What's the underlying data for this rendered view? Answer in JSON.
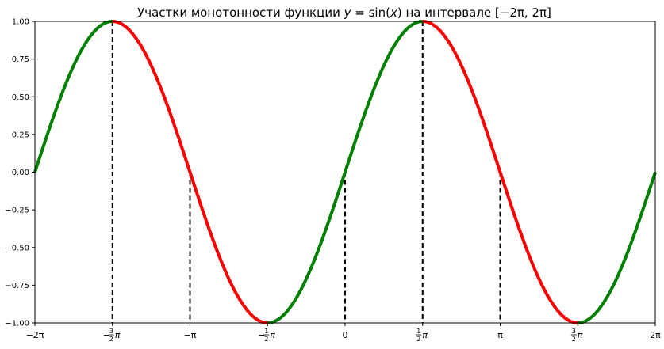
{
  "chart_data": {
    "type": "line",
    "title": {
      "prefix": "Участки монотонности функции ",
      "func_var": "y",
      "func_eq": " = sin(",
      "func_arg": "x",
      "func_close": ")",
      "middle": " на интервале ",
      "interval": "[−2π, 2π]"
    },
    "xlabel": "",
    "ylabel": "",
    "xlim": [
      -6.283185,
      6.283185
    ],
    "ylim": [
      -1.0,
      1.0
    ],
    "grid": false,
    "function": "sin(x)",
    "series": [
      {
        "segment": "increasing",
        "color": "#008000",
        "x": [
          -6.283185,
          -4.712389
        ]
      },
      {
        "segment": "decreasing",
        "color": "#ff0000",
        "x": [
          -4.712389,
          -1.570796
        ]
      },
      {
        "segment": "increasing",
        "color": "#008000",
        "x": [
          -1.570796,
          1.570796
        ]
      },
      {
        "segment": "decreasing",
        "color": "#ff0000",
        "x": [
          1.570796,
          4.712389
        ]
      },
      {
        "segment": "increasing",
        "color": "#008000",
        "x": [
          4.712389,
          6.283185
        ]
      }
    ],
    "vertical_lines": [
      {
        "x": -4.712389,
        "y_to": 1.0
      },
      {
        "x": -3.141593,
        "y_to": 0.0
      },
      {
        "x": -1.570796,
        "y_to": -1.0
      },
      {
        "x": 0.0,
        "y_to": 0.0
      },
      {
        "x": 1.570796,
        "y_to": 1.0
      },
      {
        "x": 3.141593,
        "y_to": 0.0
      },
      {
        "x": 4.712389,
        "y_to": -1.0
      }
    ],
    "vline_color": "#000000",
    "y_ticks": [
      {
        "value": 1.0,
        "label": "1.00"
      },
      {
        "value": 0.75,
        "label": "0.75"
      },
      {
        "value": 0.5,
        "label": "0.50"
      },
      {
        "value": 0.25,
        "label": "0.25"
      },
      {
        "value": 0.0,
        "label": "0.00"
      },
      {
        "value": -0.25,
        "label": "−0.25"
      },
      {
        "value": -0.5,
        "label": "−0.50"
      },
      {
        "value": -0.75,
        "label": "−0.75"
      },
      {
        "value": -1.0,
        "label": "−1.00"
      }
    ],
    "x_ticks": [
      {
        "value": -6.283185,
        "sign": "−",
        "frac": "",
        "tail": "2π"
      },
      {
        "value": -4.712389,
        "sign": "−",
        "frac": "3/2",
        "tail": "π"
      },
      {
        "value": -3.141593,
        "sign": "−",
        "frac": "",
        "tail": "π"
      },
      {
        "value": -1.570796,
        "sign": "−",
        "frac": "1/2",
        "tail": "π"
      },
      {
        "value": 0.0,
        "sign": "",
        "frac": "",
        "tail": "0"
      },
      {
        "value": 1.570796,
        "sign": "",
        "frac": "1/2",
        "tail": "π"
      },
      {
        "value": 3.141593,
        "sign": "",
        "frac": "",
        "tail": "π"
      },
      {
        "value": 4.712389,
        "sign": "",
        "frac": "3/2",
        "tail": "π"
      },
      {
        "value": 6.283185,
        "sign": "",
        "frac": "",
        "tail": "2π"
      }
    ]
  }
}
